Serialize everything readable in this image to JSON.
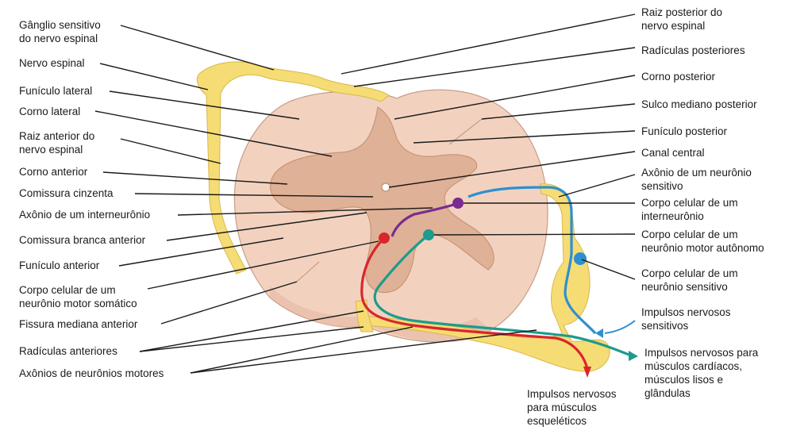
{
  "labels_left": [
    {
      "id": "ganglio",
      "lines": [
        "Gânglio sensitivo",
        "do nervo espinal"
      ]
    },
    {
      "id": "nervo",
      "lines": [
        "Nervo espinal"
      ]
    },
    {
      "id": "funiculo-lateral",
      "lines": [
        "Funículo lateral"
      ]
    },
    {
      "id": "corno-lateral",
      "lines": [
        "Corno lateral"
      ]
    },
    {
      "id": "raiz-anterior",
      "lines": [
        "Raiz anterior do",
        "nervo espinal"
      ]
    },
    {
      "id": "corno-anterior",
      "lines": [
        "Corno anterior"
      ]
    },
    {
      "id": "comissura-cinzenta",
      "lines": [
        "Comissura cinzenta"
      ]
    },
    {
      "id": "axonio-interneuronio",
      "lines": [
        "Axônio de um interneurônio"
      ]
    },
    {
      "id": "comissura-branca",
      "lines": [
        "Comissura branca anterior"
      ]
    },
    {
      "id": "funiculo-anterior",
      "lines": [
        "Funículo anterior"
      ]
    },
    {
      "id": "corpo-motor-somatico",
      "lines": [
        "Corpo celular de um",
        "neurônio motor somático"
      ]
    },
    {
      "id": "fissura",
      "lines": [
        "Fissura mediana anterior"
      ]
    },
    {
      "id": "radiculas-anteriores",
      "lines": [
        "Radículas anteriores"
      ]
    },
    {
      "id": "axonios-motores",
      "lines": [
        "Axônios de neurônios motores"
      ]
    }
  ],
  "labels_right": [
    {
      "id": "raiz-posterior",
      "lines": [
        "Raiz posterior do",
        "nervo espinal"
      ]
    },
    {
      "id": "radiculas-posteriores",
      "lines": [
        "Radículas posteriores"
      ]
    },
    {
      "id": "corno-posterior",
      "lines": [
        "Corno posterior"
      ]
    },
    {
      "id": "sulco",
      "lines": [
        "Sulco mediano posterior"
      ]
    },
    {
      "id": "funiculo-posterior",
      "lines": [
        "Funículo posterior"
      ]
    },
    {
      "id": "canal",
      "lines": [
        "Canal central"
      ]
    },
    {
      "id": "axonio-sensitivo",
      "lines": [
        "Axônio de um neurônio",
        "sensitivo"
      ]
    },
    {
      "id": "corpo-interneuronio",
      "lines": [
        "Corpo celular de um",
        "interneurônio"
      ]
    },
    {
      "id": "corpo-autonomo",
      "lines": [
        "Corpo celular de um",
        "neurônio motor autônomo"
      ]
    },
    {
      "id": "corpo-sensitivo",
      "lines": [
        "Corpo celular de um",
        "neurônio sensitivo"
      ]
    },
    {
      "id": "impulsos-sensitivos",
      "lines": [
        "Impulsos nervosos",
        "sensitivos"
      ]
    },
    {
      "id": "impulsos-cardiacos",
      "lines": [
        "Impulsos nervosos para",
        "músculos cardíacos,",
        "músculos lisos e",
        "glândulas"
      ]
    }
  ],
  "labels_bottom": [
    {
      "id": "impulsos-esqueleticos",
      "lines": [
        "Impulsos nervosos",
        "para músculos",
        "esqueléticos"
      ]
    }
  ],
  "colors": {
    "white_matter": "#f2d2bf",
    "gray_matter": "#dfb196",
    "nerve": "#f6dc74",
    "sensory": "#2d8fd0",
    "motor_somatic": "#d8262c",
    "motor_autonomic": "#1d9b8c",
    "interneuron": "#7b2b8f"
  }
}
